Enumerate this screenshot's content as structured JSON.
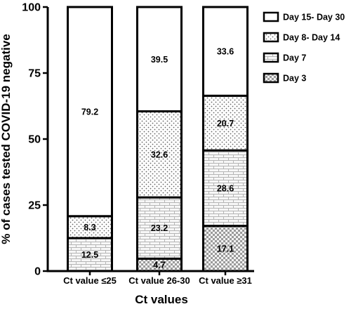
{
  "chart_data": {
    "type": "bar",
    "stacked": true,
    "title": "",
    "xlabel": "Ct values",
    "ylabel": "% of cases tested COVID-19 negative",
    "ylim": [
      0,
      100
    ],
    "yticks": [
      "0",
      "25",
      "50",
      "75",
      "100"
    ],
    "categories": [
      "Ct value ≤25",
      "Ct value 26-30",
      "Ct value ≥31"
    ],
    "series": [
      {
        "name": "Day 3",
        "values": [
          0,
          4.7,
          17.1
        ],
        "labels": [
          "",
          "4.7",
          "17.1"
        ],
        "pattern": "checker"
      },
      {
        "name": "Day 7",
        "values": [
          12.5,
          23.2,
          28.6
        ],
        "labels": [
          "12.5",
          "23.2",
          "28.6"
        ],
        "pattern": "brick"
      },
      {
        "name": "Day 8- Day 14",
        "values": [
          8.3,
          32.6,
          20.7
        ],
        "labels": [
          "8.3",
          "32.6",
          "20.7"
        ],
        "pattern": "dots"
      },
      {
        "name": "Day 15- Day 30",
        "values": [
          79.2,
          39.5,
          33.6
        ],
        "labels": [
          "79.2",
          "39.5",
          "33.6"
        ],
        "pattern": "white"
      }
    ],
    "legend_position": "top-right",
    "legend_order": [
      "Day 15- Day 30",
      "Day 8- Day 14",
      "Day 7",
      "Day 3"
    ],
    "grid": false
  }
}
